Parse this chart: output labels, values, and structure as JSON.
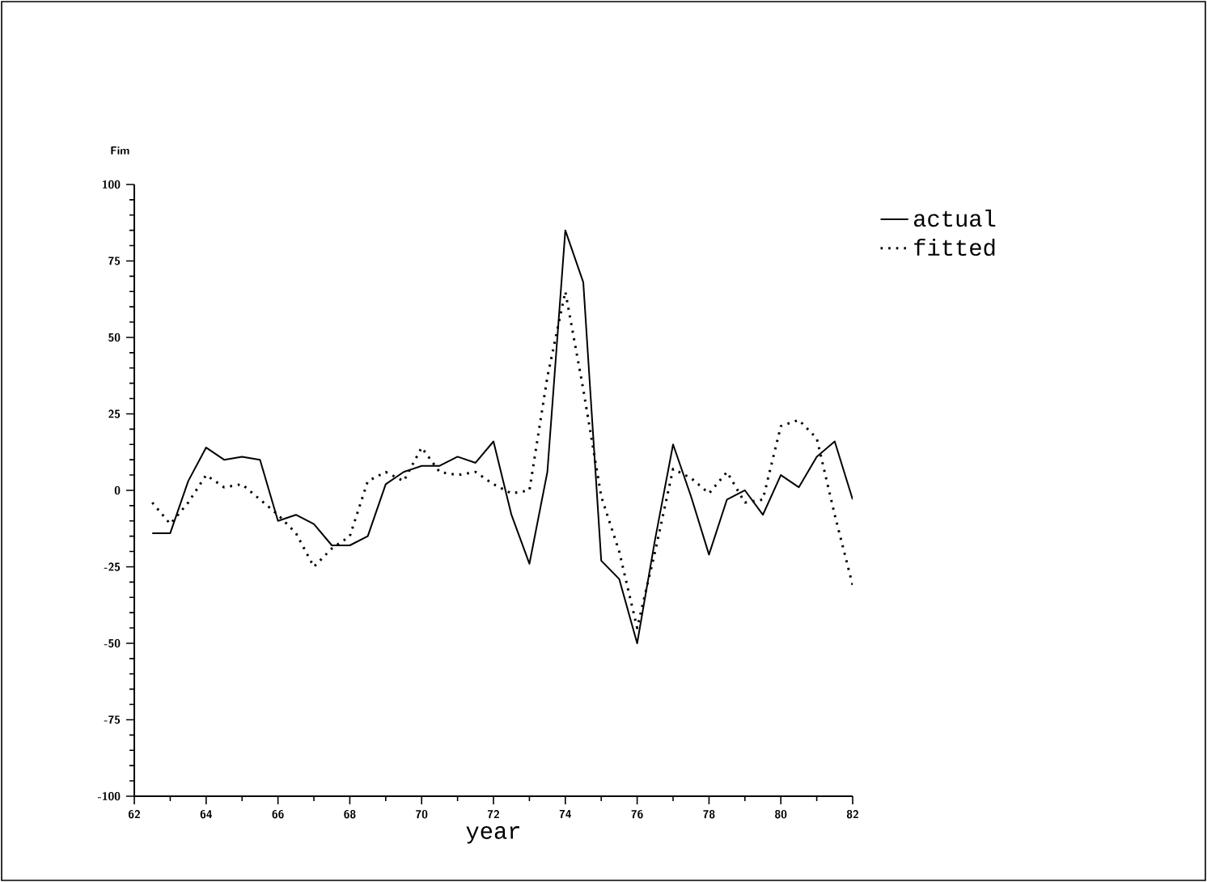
{
  "chart_data": {
    "type": "line",
    "ylabel": "Fim",
    "xlabel": "year",
    "x": [
      62.5,
      63.0,
      63.5,
      64.0,
      64.5,
      65.0,
      65.5,
      66.0,
      66.5,
      67.0,
      67.5,
      68.0,
      68.5,
      69.0,
      69.5,
      70.0,
      70.5,
      71.0,
      71.5,
      72.0,
      72.5,
      73.0,
      73.5,
      74.0,
      74.5,
      75.0,
      75.5,
      76.0,
      76.5,
      77.0,
      77.5,
      78.0,
      78.5,
      79.0,
      79.5,
      80.0,
      80.5,
      81.0,
      81.5,
      82.0
    ],
    "series": [
      {
        "name": "actual",
        "color": "#000000",
        "line_style": "solid",
        "values": [
          -14,
          -14,
          3,
          14,
          10,
          11,
          10,
          -10,
          -8,
          -11,
          -18,
          -18,
          -15,
          2,
          6,
          8,
          8,
          11,
          9,
          16,
          -8,
          -24,
          6,
          85,
          68,
          -23,
          -29,
          -50,
          -16,
          15,
          -2,
          -21,
          -3,
          0,
          -8,
          5,
          1,
          11,
          16,
          -3
        ]
      },
      {
        "name": "fitted",
        "color": "#000000",
        "line_style": "dotted",
        "values": [
          -4,
          -11,
          -4,
          5,
          1,
          2,
          -3,
          -8,
          -14,
          -25,
          -19,
          -15,
          3,
          6,
          3,
          14,
          6,
          5,
          6,
          2,
          -1,
          0,
          37,
          65,
          33,
          -2,
          -20,
          -45,
          -20,
          7,
          4,
          -1,
          6,
          -4,
          -3,
          21,
          23,
          17,
          -8,
          -31
        ]
      }
    ],
    "xlim": [
      62,
      82
    ],
    "ylim": [
      -100,
      100
    ],
    "xticks": [
      62,
      64,
      66,
      68,
      70,
      72,
      74,
      76,
      78,
      80,
      82
    ],
    "yticks": [
      -100,
      -75,
      -50,
      -25,
      0,
      25,
      50,
      75,
      100
    ],
    "legend": "top right",
    "grid": false,
    "marker": "none"
  }
}
